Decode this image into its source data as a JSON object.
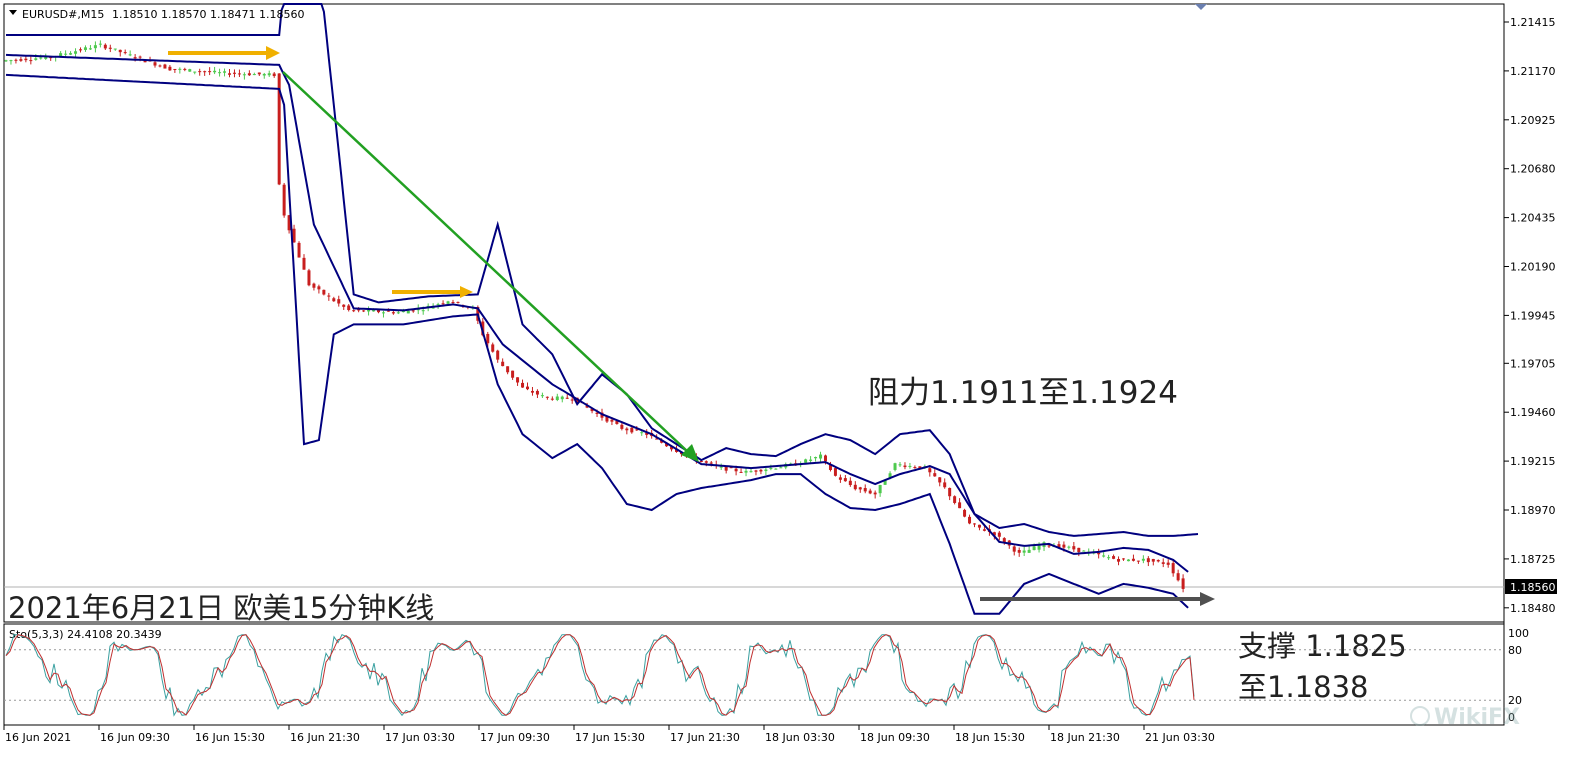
{
  "header": {
    "symbol": "EURUSD#,M15",
    "ohlc": "1.18510 1.18570 1.18471 1.18560"
  },
  "annotations": {
    "resistance": "阻力1.1911至1.1924",
    "title": "2021年6月21日 欧美15分钟K线",
    "support_line1": "支撑 1.1825",
    "support_line2": "至1.1838"
  },
  "watermark": "WikiFX",
  "stochastic": {
    "label": "Sto(5,3,3) 24.4108 20.3439",
    "levels": [
      "100",
      "80",
      "20",
      "0"
    ]
  },
  "chart_data": [
    {
      "type": "candlestick",
      "title": "",
      "series": [
        {
          "name": "price",
          "kind": "candles"
        },
        {
          "name": "",
          "kind": "bollinger-bands"
        }
      ],
      "y_ticks": [
        "1.21415",
        "1.21170",
        "1.20925",
        "1.20680",
        "1.20435",
        "1.20190",
        "1.19945",
        "1.19705",
        "1.19460",
        "1.19215",
        "1.18970",
        "1.18725",
        "1.18480"
      ],
      "current_price": "1.18560",
      "x_ticks": [
        "16 Jun 2021",
        "16 Jun 09:30",
        "16 Jun 15:30",
        "16 Jun 21:30",
        "17 Jun 03:30",
        "17 Jun 09:30",
        "17 Jun 15:30",
        "17 Jun 21:30",
        "18 Jun 03:30",
        "18 Jun 09:30",
        "18 Jun 15:30",
        "18 Jun 21:30",
        "21 Jun 03:30"
      ],
      "price_path": [
        [
          0,
          1.2122
        ],
        [
          10,
          1.2124
        ],
        [
          20,
          1.213
        ],
        [
          28,
          1.2123
        ],
        [
          34,
          1.2118
        ],
        [
          44,
          1.2116
        ],
        [
          55,
          1.2115
        ],
        [
          56,
          1.206
        ],
        [
          57,
          1.2045
        ],
        [
          62,
          1.201
        ],
        [
          70,
          1.1997
        ],
        [
          80,
          1.1996
        ],
        [
          85,
          1.1998
        ],
        [
          90,
          1.2002
        ],
        [
          95,
          1.1998
        ],
        [
          97,
          1.1985
        ],
        [
          100,
          1.1972
        ],
        [
          105,
          1.1958
        ],
        [
          110,
          1.1953
        ],
        [
          115,
          1.1953
        ],
        [
          120,
          1.1945
        ],
        [
          125,
          1.1938
        ],
        [
          130,
          1.1935
        ],
        [
          135,
          1.1928
        ],
        [
          140,
          1.1922
        ],
        [
          145,
          1.1918
        ],
        [
          150,
          1.1916
        ],
        [
          155,
          1.1918
        ],
        [
          160,
          1.192
        ],
        [
          165,
          1.1924
        ],
        [
          168,
          1.1914
        ],
        [
          172,
          1.1908
        ],
        [
          176,
          1.1905
        ],
        [
          180,
          1.192
        ],
        [
          186,
          1.1918
        ],
        [
          190,
          1.1908
        ],
        [
          195,
          1.189
        ],
        [
          200,
          1.1885
        ],
        [
          205,
          1.1875
        ],
        [
          210,
          1.188
        ],
        [
          215,
          1.1878
        ],
        [
          220,
          1.1875
        ],
        [
          225,
          1.1872
        ],
        [
          230,
          1.1872
        ],
        [
          235,
          1.187
        ],
        [
          238,
          1.1858
        ]
      ],
      "bb_upper": [
        [
          0,
          1.2135
        ],
        [
          55,
          1.2135
        ],
        [
          56,
          1.216
        ],
        [
          63,
          1.217
        ],
        [
          66,
          1.21
        ],
        [
          70,
          1.2005
        ],
        [
          75,
          1.2001
        ],
        [
          85,
          1.2004
        ],
        [
          95,
          1.2005
        ],
        [
          99,
          1.204
        ],
        [
          104,
          1.199
        ],
        [
          110,
          1.1975
        ],
        [
          115,
          1.195
        ],
        [
          120,
          1.1965
        ],
        [
          125,
          1.1955
        ],
        [
          130,
          1.1938
        ],
        [
          135,
          1.193
        ],
        [
          140,
          1.1922
        ],
        [
          145,
          1.1928
        ],
        [
          150,
          1.1925
        ],
        [
          155,
          1.1924
        ],
        [
          160,
          1.193
        ],
        [
          165,
          1.1935
        ],
        [
          170,
          1.1932
        ],
        [
          175,
          1.1925
        ],
        [
          180,
          1.1935
        ],
        [
          186,
          1.1937
        ],
        [
          190,
          1.1925
        ],
        [
          195,
          1.1895
        ],
        [
          200,
          1.1888
        ],
        [
          205,
          1.189
        ],
        [
          210,
          1.1886
        ],
        [
          215,
          1.1884
        ],
        [
          220,
          1.1885
        ],
        [
          225,
          1.1886
        ],
        [
          230,
          1.1884
        ],
        [
          235,
          1.1884
        ],
        [
          240,
          1.1885
        ]
      ],
      "bb_middle": [
        [
          0,
          1.2125
        ],
        [
          55,
          1.212
        ],
        [
          57,
          1.211
        ],
        [
          62,
          1.204
        ],
        [
          70,
          1.1998
        ],
        [
          80,
          1.1997
        ],
        [
          90,
          1.2
        ],
        [
          95,
          1.1998
        ],
        [
          100,
          1.198
        ],
        [
          110,
          1.196
        ],
        [
          120,
          1.1945
        ],
        [
          130,
          1.1935
        ],
        [
          140,
          1.192
        ],
        [
          150,
          1.1918
        ],
        [
          160,
          1.192
        ],
        [
          165,
          1.1921
        ],
        [
          170,
          1.1915
        ],
        [
          175,
          1.191
        ],
        [
          180,
          1.1915
        ],
        [
          186,
          1.1919
        ],
        [
          190,
          1.1915
        ],
        [
          195,
          1.1895
        ],
        [
          200,
          1.1881
        ],
        [
          205,
          1.1879
        ],
        [
          210,
          1.188
        ],
        [
          215,
          1.1875
        ],
        [
          220,
          1.1876
        ],
        [
          225,
          1.1878
        ],
        [
          230,
          1.1877
        ],
        [
          235,
          1.1872
        ],
        [
          238,
          1.1866
        ]
      ],
      "bb_lower": [
        [
          0,
          1.2115
        ],
        [
          55,
          1.2108
        ],
        [
          56,
          1.21
        ],
        [
          60,
          1.193
        ],
        [
          63,
          1.1932
        ],
        [
          66,
          1.1985
        ],
        [
          70,
          1.199
        ],
        [
          80,
          1.199
        ],
        [
          90,
          1.1994
        ],
        [
          95,
          1.1995
        ],
        [
          99,
          1.196
        ],
        [
          104,
          1.1935
        ],
        [
          110,
          1.1923
        ],
        [
          115,
          1.193
        ],
        [
          120,
          1.1918
        ],
        [
          125,
          1.19
        ],
        [
          130,
          1.1897
        ],
        [
          135,
          1.1905
        ],
        [
          140,
          1.1908
        ],
        [
          145,
          1.191
        ],
        [
          150,
          1.1912
        ],
        [
          155,
          1.1915
        ],
        [
          160,
          1.1915
        ],
        [
          165,
          1.1905
        ],
        [
          170,
          1.1898
        ],
        [
          175,
          1.1897
        ],
        [
          180,
          1.19
        ],
        [
          186,
          1.1905
        ],
        [
          190,
          1.188
        ],
        [
          195,
          1.1845
        ],
        [
          200,
          1.1845
        ],
        [
          205,
          1.186
        ],
        [
          210,
          1.1865
        ],
        [
          215,
          1.186
        ],
        [
          220,
          1.1855
        ],
        [
          225,
          1.186
        ],
        [
          230,
          1.1858
        ],
        [
          235,
          1.1855
        ],
        [
          238,
          1.1848
        ]
      ]
    },
    {
      "type": "line",
      "title": "Sto(5,3,3) 24.4108 20.3439",
      "ylim": [
        0,
        100
      ],
      "series": [
        {
          "name": "",
          "color": "#3aa0a0"
        },
        {
          "name": "",
          "color": "#c03030"
        }
      ],
      "last_values": [
        24.4108,
        20.3439
      ]
    }
  ],
  "colors": {
    "up": "#4ec94e",
    "down": "#c81e1e",
    "bands": "#00007f",
    "trend": "#22a022",
    "arrow_orange": "#f0b000",
    "arrow_gray": "#505050"
  }
}
